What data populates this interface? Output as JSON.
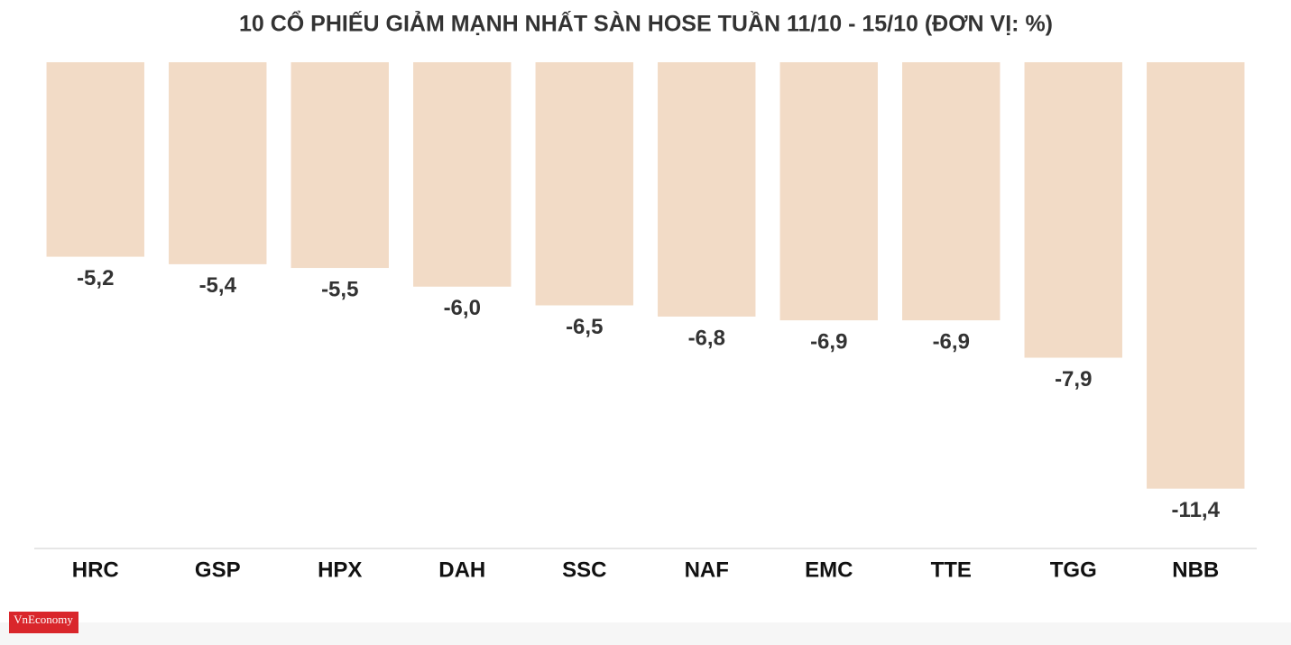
{
  "chart_data": {
    "type": "bar",
    "title": "10 CỔ PHIẾU GIẢM MẠNH NHẤT SÀN HOSE TUẦN 11/10 - 15/10 (ĐƠN VỊ: %)",
    "categories": [
      "HRC",
      "GSP",
      "HPX",
      "DAH",
      "SSC",
      "NAF",
      "EMC",
      "TTE",
      "TGG",
      "NBB"
    ],
    "values": [
      -5.2,
      -5.4,
      -5.5,
      -6.0,
      -6.5,
      -6.8,
      -6.9,
      -6.9,
      -7.9,
      -11.4
    ],
    "value_labels": [
      "-5,2",
      "-5,4",
      "-5,5",
      "-6,0",
      "-6,5",
      "-6,8",
      "-6,9",
      "-6,9",
      "-7,9",
      "-11,4"
    ],
    "color": "#f2dbc6",
    "ylim": [
      -13,
      0
    ]
  },
  "logo": "VnEconomy"
}
